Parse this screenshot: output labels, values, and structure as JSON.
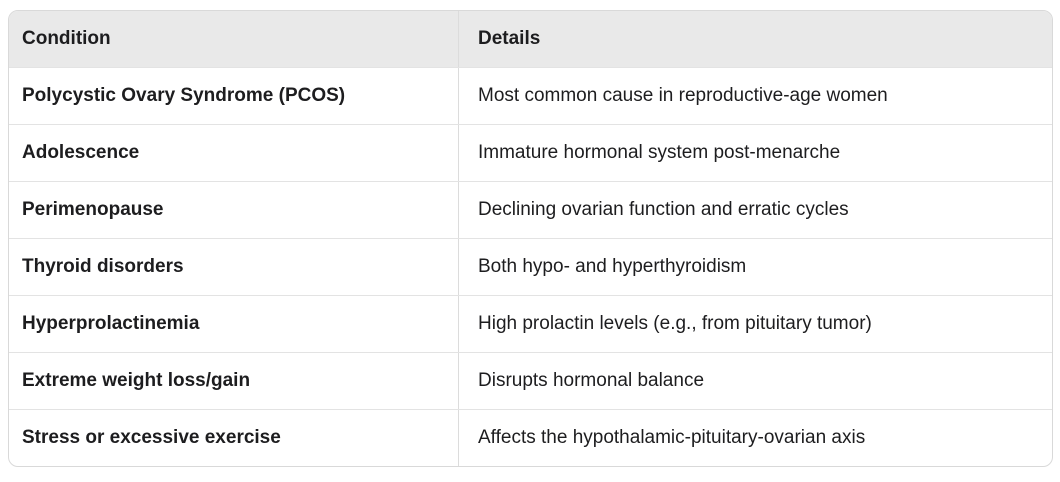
{
  "table": {
    "columns": {
      "condition_header": "Condition",
      "details_header": "Details"
    },
    "rows": [
      {
        "condition": "Polycystic Ovary Syndrome (PCOS)",
        "details": "Most common cause in reproductive-age women"
      },
      {
        "condition": "Adolescence",
        "details": "Immature hormonal system post-menarche"
      },
      {
        "condition": "Perimenopause",
        "details": "Declining ovarian function and erratic cycles"
      },
      {
        "condition": "Thyroid disorders",
        "details": "Both hypo- and hyperthyroidism"
      },
      {
        "condition": "Hyperprolactinemia",
        "details": "High prolactin levels (e.g., from pituitary tumor)"
      },
      {
        "condition": "Extreme weight loss/gain",
        "details": "Disrupts hormonal balance"
      },
      {
        "condition": "Stress or excessive exercise",
        "details": "Affects the hypothalamic-pituitary-ovarian axis"
      }
    ],
    "colors": {
      "header_bg": "#e9e9e9",
      "outer_border": "#d9d9d9",
      "row_divider": "#e3e3e3",
      "column_divider": "#dcdcdc",
      "text": "#1d1d1f",
      "page_bg": "#ffffff"
    }
  }
}
